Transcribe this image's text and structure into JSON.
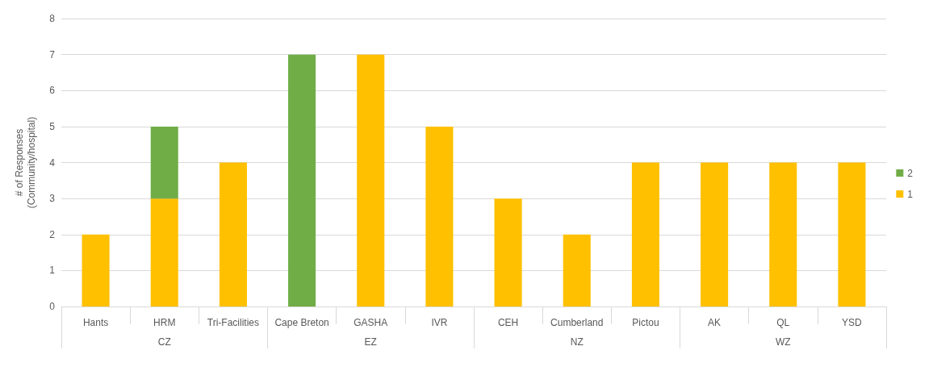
{
  "chart_data": {
    "type": "bar",
    "stacked": true,
    "ylabel": "# of Responses\n(Community/hospital)",
    "categories": [
      "Hants",
      "HRM",
      "Tri-Facilities",
      "Cape Breton",
      "GASHA",
      "IVR",
      "CEH",
      "Cumberland",
      "Pictou",
      "AK",
      "QL",
      "YSD"
    ],
    "series": [
      {
        "name": "1",
        "color": "#ffc000",
        "values": [
          2,
          3,
          4,
          0,
          7,
          5,
          3,
          2,
          4,
          4,
          4,
          4
        ]
      },
      {
        "name": "2",
        "color": "#70ad47",
        "values": [
          null,
          2,
          null,
          7,
          null,
          null,
          null,
          null,
          null,
          null,
          null,
          null
        ]
      }
    ],
    "annotations": [
      "CZ",
      "EZ",
      "NZ",
      "WZ"
    ],
    "ylim": [
      0,
      8
    ],
    "yticks": [
      0,
      1,
      2,
      3,
      4,
      5,
      6,
      7,
      8
    ],
    "grid": "y",
    "legend": "right"
  }
}
